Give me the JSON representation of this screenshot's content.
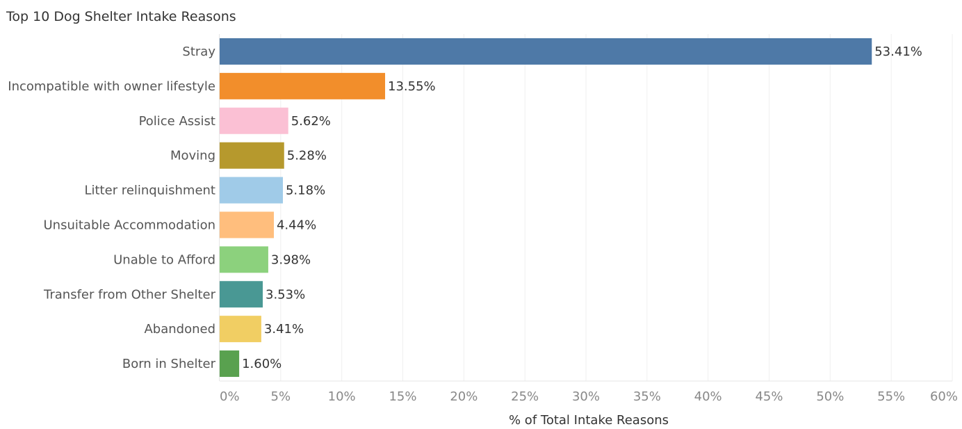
{
  "chart_data": {
    "type": "bar",
    "orientation": "horizontal",
    "title": "Top 10 Dog Shelter Intake Reasons",
    "xlabel": "% of Total Intake Reasons",
    "ylabel": "",
    "xlim": [
      0,
      60
    ],
    "x_tick_values": [
      0,
      5,
      10,
      15,
      20,
      25,
      30,
      35,
      40,
      45,
      50,
      55,
      60
    ],
    "x_tick_labels": [
      "0%",
      "5%",
      "10%",
      "15%",
      "20%",
      "25%",
      "30%",
      "35%",
      "40%",
      "45%",
      "50%",
      "55%",
      "60%"
    ],
    "grid": "vertical gridlines",
    "legend": "none",
    "categories": [
      "Stray",
      "Incompatible with owner lifestyle",
      "Police Assist",
      "Moving",
      "Litter relinquishment",
      "Unsuitable Accommodation",
      "Unable to Afford",
      "Transfer from Other Shelter",
      "Abandoned",
      "Born in Shelter"
    ],
    "values": [
      53.41,
      13.55,
      5.62,
      5.28,
      5.18,
      4.44,
      3.98,
      3.53,
      3.41,
      1.6
    ],
    "value_labels": [
      "53.41%",
      "13.55%",
      "5.62%",
      "5.28%",
      "5.18%",
      "4.44%",
      "3.98%",
      "3.53%",
      "3.41%",
      "1.60%"
    ],
    "colors": [
      "#4e79a7",
      "#f28e2b",
      "#fbc0d4",
      "#b6992d",
      "#a0cbe8",
      "#ffbe7d",
      "#8cd17d",
      "#499894",
      "#f1ce63",
      "#59a14f"
    ]
  }
}
